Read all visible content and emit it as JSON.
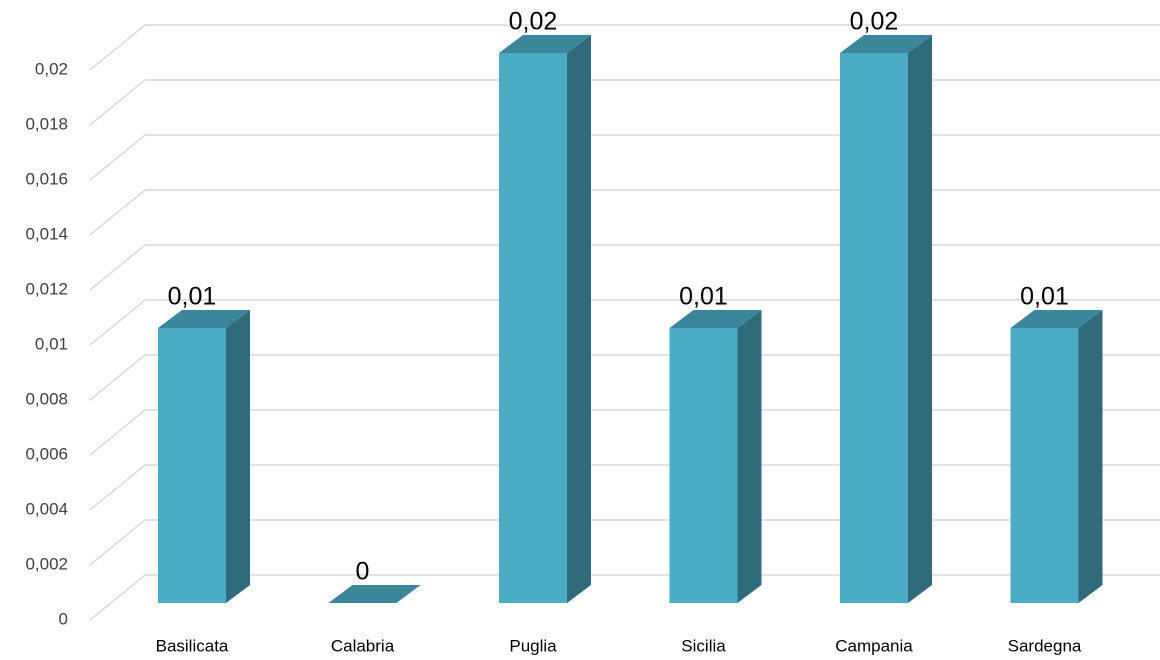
{
  "chart_data": {
    "type": "bar3d",
    "categories": [
      "Basilicata",
      "Calabria",
      "Puglia",
      "Sicilia",
      "Campania",
      "Sardegna"
    ],
    "values": [
      0.01,
      0,
      0.02,
      0.01,
      0.02,
      0.01
    ],
    "value_labels": [
      "0,01",
      "0",
      "0,02",
      "0,01",
      "0,02",
      "0,01"
    ],
    "color": "#4bacc6",
    "ylim": [
      0,
      0.02
    ],
    "yticks": [
      0,
      {
        "value": 0.002,
        "label": "0,002"
      },
      {
        "value": 0.004,
        "label": "0,004"
      },
      {
        "value": 0.006,
        "label": "0,006"
      },
      {
        "value": 0.008,
        "label": "0,008"
      },
      {
        "value": 0.01,
        "label": "0,01"
      },
      {
        "value": 0.012,
        "label": "0,012"
      },
      {
        "value": 0.014,
        "label": "0,014"
      },
      {
        "value": 0.016,
        "label": "0,016"
      },
      {
        "value": 0.018,
        "label": "0,018"
      },
      {
        "value": 0.02,
        "label": "0,02"
      }
    ],
    "grid": true
  }
}
